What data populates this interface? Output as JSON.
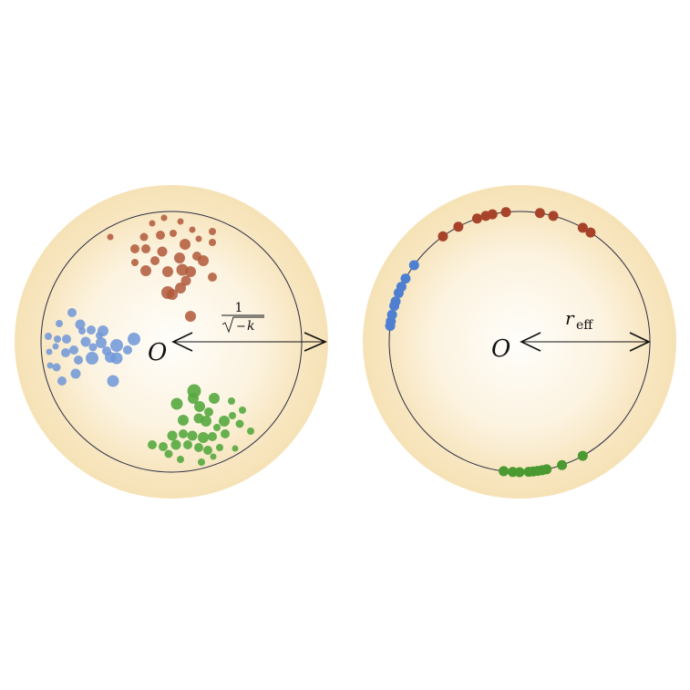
{
  "left_panel": {
    "origin_label": "O",
    "radius_label": {
      "numerator": "1",
      "radicand_minus": "−",
      "radicand_var": "k"
    },
    "clusters": [
      {
        "name": "red-cluster",
        "color": "#b0583a",
        "opacity": 0.85,
        "count": 30
      },
      {
        "name": "blue-cluster",
        "color": "#6e97d8",
        "opacity": 0.85,
        "count": 30
      },
      {
        "name": "green-cluster",
        "color": "#57a93f",
        "opacity": 0.9,
        "count": 34
      }
    ]
  },
  "right_panel": {
    "origin_label": "O",
    "radius_label": {
      "var": "r",
      "subscript": "eff"
    },
    "clusters": [
      {
        "name": "red-boundary-cluster",
        "color": "#a8432b",
        "count": 10
      },
      {
        "name": "blue-boundary-cluster",
        "color": "#4f7fd1",
        "count": 9
      },
      {
        "name": "green-boundary-cluster",
        "color": "#4a9a31",
        "count": 10
      }
    ]
  },
  "colors": {
    "disk_outer": "#f7e5bd",
    "disk_inner": "#fffdf8",
    "boundary_stroke": "#2b2f45",
    "arrow": "#111111"
  }
}
